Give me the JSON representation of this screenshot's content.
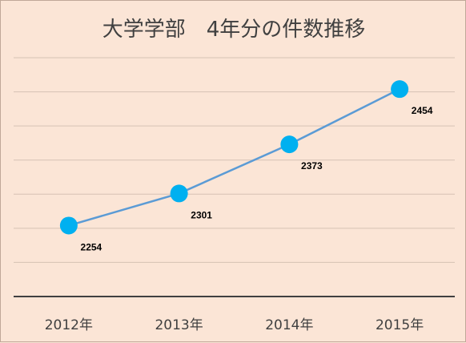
{
  "chart_data": {
    "type": "line",
    "title": "大学学部　4年分の件数推移",
    "categories": [
      "2012年",
      "2013年",
      "2014年",
      "2015年"
    ],
    "series": [
      {
        "values": [
          2254,
          2301,
          2373,
          2454
        ]
      }
    ],
    "data_labels": [
      "2254",
      "2301",
      "2373",
      "2454"
    ],
    "ylim": [
      2150,
      2500
    ],
    "grid": true,
    "legend": "none",
    "line_color": "#5b9bd5",
    "marker_color": "#00b0f0",
    "background_color": "#fbe5d6"
  }
}
